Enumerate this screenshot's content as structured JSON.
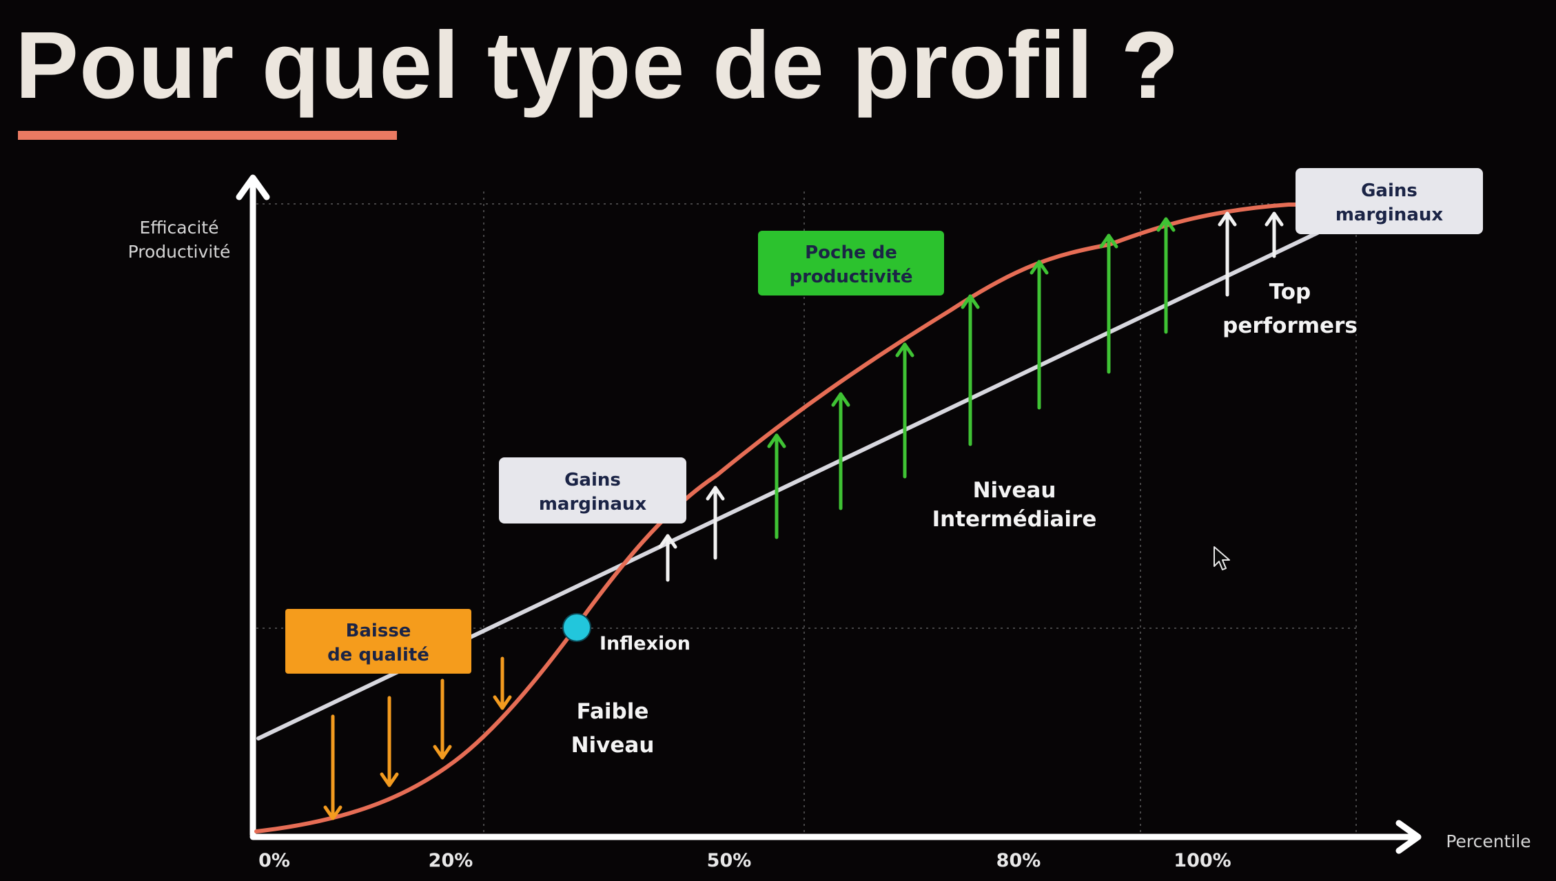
{
  "slide": {
    "title": "Pour quel type de profil ?"
  },
  "axes": {
    "y_label_line1": "Efficacité",
    "y_label_line2": "Productivité",
    "x_label": "Percentile",
    "x_ticks": [
      "0%",
      "20%",
      "50%",
      "80%",
      "100%"
    ]
  },
  "annotations": {
    "baisse_line1": "Baisse",
    "baisse_line2": "de qualité",
    "gains_low_line1": "Gains",
    "gains_low_line2": "marginaux",
    "poche_line1": "Poche de",
    "poche_line2": "productivité",
    "gains_top_line1": "Gains",
    "gains_top_line2": "marginaux",
    "inflexion": "Inflexion",
    "faible_line1": "Faible",
    "faible_line2": "Niveau",
    "niveau_line1": "Niveau",
    "niveau_line2": "Intermédiaire",
    "top_line1": "Top",
    "top_line2": "performers"
  },
  "colors": {
    "background": "#070506",
    "title": "#ece6de",
    "accent_underline": "#ea7a62",
    "s_curve": "#e66d55",
    "linear_line": "#d8d8df",
    "loss_arrows": "#f39b1f",
    "gain_arrows": "#3fc334",
    "marginal_arrows": "#f2f2f2",
    "baisse_box": "#f59c1c",
    "poche_box": "#2cc22e",
    "gains_box": "#e7e7ec",
    "box_text": "#1b2446",
    "inflexion_dot": "#22c6dc"
  }
}
